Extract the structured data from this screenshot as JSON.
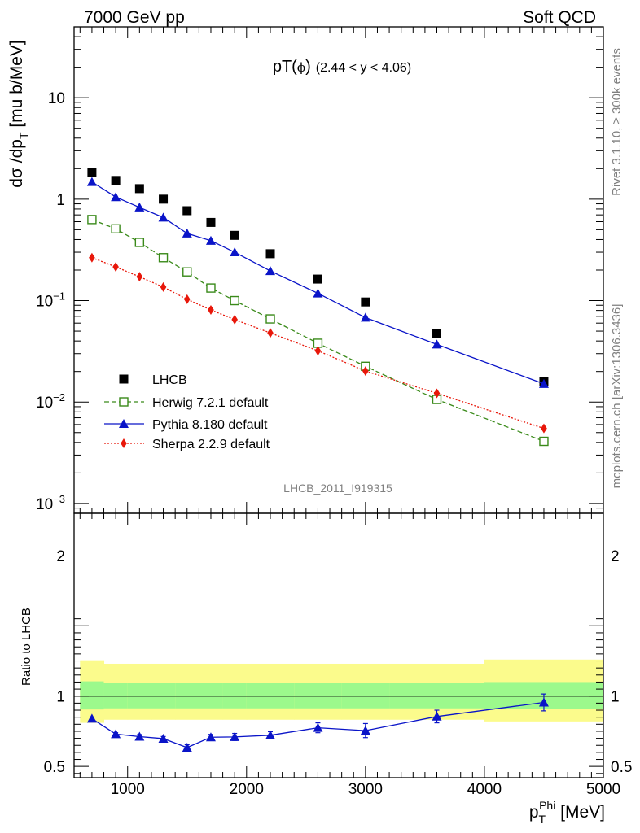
{
  "header": {
    "left": "7000 GeV pp",
    "right": "Soft QCD"
  },
  "side": {
    "rivet": "Rivet 3.1.10, ≥ 300k events",
    "mcplots": "mcplots.cern.ch [arXiv:1306.3436]"
  },
  "watermark": "LHCB_2011_I919315",
  "colors": {
    "data": "#000000",
    "herwig": "#3a8a1a",
    "pythia": "#0a14c8",
    "sherpa": "#e8170a",
    "band_inner": "#9cf98c",
    "band_outer": "#fbfb8c"
  },
  "chart_data": [
    {
      "type": "scatter",
      "title": "pT(ϕ) (2.44 < y < 4.06)",
      "title_parts": {
        "main": "pT(",
        "phi": "ϕ",
        "close": ")",
        "range": "(2.44 < y < 4.06)"
      },
      "ylabel": "dσ /dp_T [mu b/MeV]",
      "ylabel_parts": {
        "main": "dσ /dp",
        "sub": "T",
        "tail": " [mu b/MeV]"
      },
      "yscale": "log",
      "xlim": [
        550,
        5000
      ],
      "ylim": [
        0.0008,
        50
      ],
      "yticklabels": [
        "10",
        "1",
        "10⁻¹",
        "10⁻²",
        "10⁻³"
      ],
      "ytick_parts": [
        {
          "base": "10",
          "exp": ""
        },
        {
          "base": "1",
          "exp": ""
        },
        {
          "base": "10",
          "exp": "−1"
        },
        {
          "base": "10",
          "exp": "−2"
        },
        {
          "base": "10",
          "exp": "−3"
        }
      ],
      "legend_position": "center-left",
      "x": [
        700,
        900,
        1100,
        1300,
        1500,
        1700,
        1900,
        2200,
        2600,
        3000,
        3600,
        4500
      ],
      "series": [
        {
          "name": "LHCB",
          "marker": "filled-square",
          "values": [
            1.83,
            1.53,
            1.27,
            1.0,
            0.77,
            0.59,
            0.44,
            0.29,
            0.163,
            0.097,
            0.047,
            0.016
          ]
        },
        {
          "name": "Herwig 7.2.1 default",
          "marker": "open-square",
          "line": "dashed",
          "values": [
            0.63,
            0.51,
            0.375,
            0.265,
            0.192,
            0.133,
            0.1,
            0.066,
            0.038,
            0.0225,
            0.0106,
            0.0041
          ]
        },
        {
          "name": "Pythia 8.180 default",
          "marker": "filled-triangle",
          "line": "solid",
          "values": [
            1.48,
            1.05,
            0.83,
            0.66,
            0.46,
            0.39,
            0.3,
            0.196,
            0.118,
            0.068,
            0.037,
            0.0151
          ]
        },
        {
          "name": "Sherpa 2.2.9 default",
          "marker": "filled-diamond",
          "line": "dotted",
          "values": [
            0.265,
            0.215,
            0.172,
            0.136,
            0.103,
            0.081,
            0.065,
            0.048,
            0.032,
            0.0202,
            0.0122,
            0.0055
          ]
        }
      ]
    },
    {
      "type": "line",
      "ylabel": "Ratio to LHCB",
      "xlabel": "p_T^Phi [MeV]",
      "xlabel_parts": {
        "main": "p",
        "sub": "T",
        "sup": "Phi",
        "tail": " [MeV]"
      },
      "xlim": [
        550,
        5000
      ],
      "ylim": [
        0.42,
        2.3
      ],
      "xticklabels": [
        "1000",
        "2000",
        "3000",
        "4000",
        "5000"
      ],
      "yticklabels": [
        "2",
        "1",
        "0.5"
      ],
      "x": [
        700,
        900,
        1100,
        1300,
        1500,
        1700,
        1900,
        2200,
        2600,
        3000,
        3600,
        4500
      ],
      "series": [
        {
          "name": "Pythia 8.180 default",
          "values": [
            0.84,
            0.73,
            0.712,
            0.698,
            0.634,
            0.708,
            0.71,
            0.722,
            0.775,
            0.755,
            0.855,
            0.955
          ],
          "errors": [
            0.0,
            0.01,
            0.015,
            0.015,
            0.02,
            0.02,
            0.025,
            0.025,
            0.035,
            0.05,
            0.045,
            0.06
          ]
        }
      ],
      "bands": {
        "x_edges": [
          600,
          800,
          1000,
          1200,
          1400,
          1600,
          1800,
          2000,
          2400,
          2800,
          3200,
          4000,
          5000
        ],
        "inner_low": [
          0.905,
          0.913,
          0.913,
          0.913,
          0.913,
          0.913,
          0.913,
          0.913,
          0.913,
          0.913,
          0.913,
          0.907
        ],
        "inner_high": [
          1.105,
          1.095,
          1.095,
          1.095,
          1.095,
          1.095,
          1.095,
          1.095,
          1.095,
          1.095,
          1.095,
          1.1
        ],
        "outer_low": [
          0.81,
          0.832,
          0.832,
          0.832,
          0.832,
          0.832,
          0.832,
          0.832,
          0.832,
          0.832,
          0.832,
          0.82
        ],
        "outer_high": [
          1.255,
          1.23,
          1.23,
          1.23,
          1.23,
          1.23,
          1.23,
          1.23,
          1.23,
          1.23,
          1.23,
          1.26
        ]
      }
    }
  ]
}
